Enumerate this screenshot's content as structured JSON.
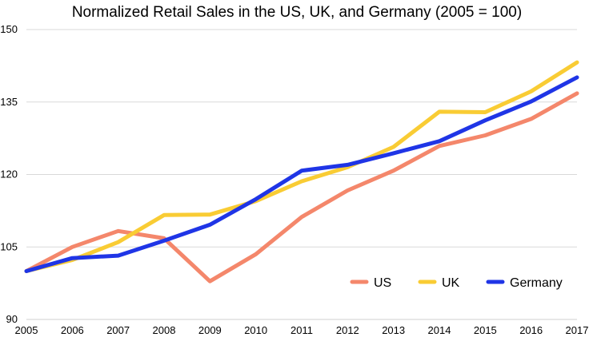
{
  "chart_data": {
    "type": "line",
    "title": "Normalized Retail Sales in the US, UK, and Germany (2005 = 100)",
    "xlabel": "",
    "ylabel": "",
    "x": [
      "2005",
      "2006",
      "2007",
      "2008",
      "2009",
      "2010",
      "2011",
      "2012",
      "2013",
      "2014",
      "2015",
      "2016",
      "2017"
    ],
    "ylim": [
      90,
      150
    ],
    "yticks": [
      "90",
      "105",
      "120",
      "135",
      "150"
    ],
    "grid": true,
    "legend_position": "bottom-right",
    "series": [
      {
        "name": "US",
        "color": "#f4876b",
        "values": [
          100,
          105,
          108.3,
          106.8,
          97.9,
          103.5,
          111.2,
          116.7,
          120.8,
          125.9,
          128.1,
          131.5,
          136.8
        ]
      },
      {
        "name": "UK",
        "color": "#f9cc34",
        "values": [
          100,
          102.3,
          106,
          111.6,
          111.7,
          114.5,
          118.6,
          121.5,
          125.7,
          133,
          132.9,
          137.2,
          143.2
        ]
      },
      {
        "name": "Germany",
        "color": "#1f35e6",
        "values": [
          100,
          102.7,
          103.2,
          106.3,
          109.6,
          114.9,
          120.8,
          122,
          124.4,
          126.9,
          131.2,
          135.1,
          140.1
        ]
      }
    ]
  }
}
